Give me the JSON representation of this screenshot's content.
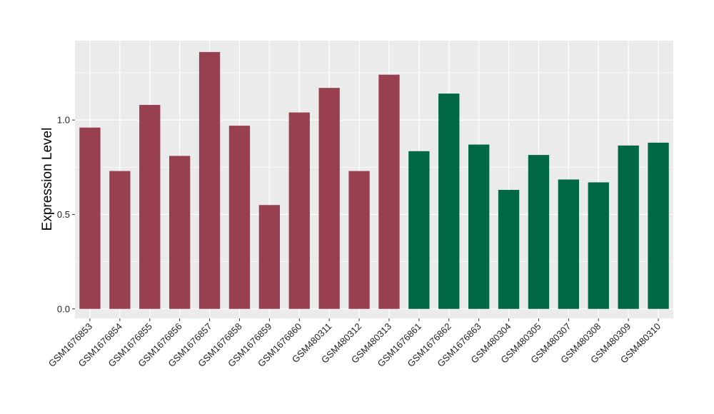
{
  "chart_data": {
    "type": "bar",
    "title": "",
    "xlabel": "",
    "ylabel": "Expression Level",
    "ylim": [
      -0.05,
      1.42
    ],
    "yticks": [
      0.0,
      0.5,
      1.0
    ],
    "ytick_labels": [
      "0.0",
      "0.5",
      "1.0"
    ],
    "grid": true,
    "categories": [
      "GSM1676853",
      "GSM1676854",
      "GSM1676855",
      "GSM1676856",
      "GSM1676857",
      "GSM1676858",
      "GSM1676859",
      "GSM1676860",
      "GSM480311",
      "GSM480312",
      "GSM480313",
      "GSM1676861",
      "GSM1676862",
      "GSM1676863",
      "GSM480304",
      "GSM480305",
      "GSM480307",
      "GSM480308",
      "GSM480309",
      "GSM480310"
    ],
    "values": [
      0.96,
      0.73,
      1.08,
      0.81,
      1.36,
      0.97,
      0.55,
      1.04,
      1.17,
      0.73,
      1.24,
      0.835,
      1.14,
      0.87,
      0.63,
      0.815,
      0.685,
      0.67,
      0.865,
      0.88
    ],
    "groups": [
      "a",
      "a",
      "a",
      "a",
      "a",
      "a",
      "a",
      "a",
      "a",
      "a",
      "a",
      "b",
      "b",
      "b",
      "b",
      "b",
      "b",
      "b",
      "b",
      "b"
    ],
    "group_colors": {
      "a": "#98404F",
      "b": "#006747"
    },
    "panel_color": "#EBEBEB",
    "grid_color": "#FFFFFF"
  }
}
